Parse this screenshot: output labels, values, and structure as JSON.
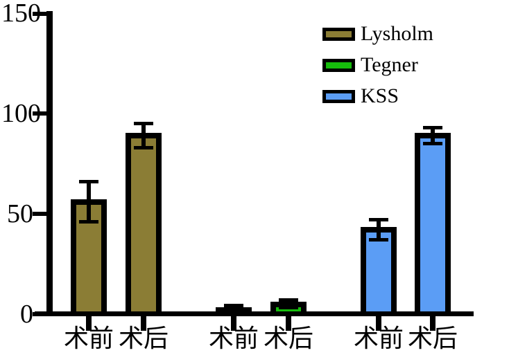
{
  "chart_data": {
    "type": "bar",
    "title": "",
    "xlabel": "",
    "ylabel": "",
    "ylim": [
      0,
      150
    ],
    "yticks": [
      0,
      50,
      100,
      150
    ],
    "grid": false,
    "legend_position": "top-right",
    "axis_color": "#000000",
    "group_x_labels": [
      "术前",
      "术后"
    ],
    "groups": [
      {
        "name": "Lysholm",
        "color": "#8B7D35",
        "bars": [
          {
            "label": "术前",
            "value": 56,
            "error": 10
          },
          {
            "label": "术后",
            "value": 89,
            "error": 6
          }
        ]
      },
      {
        "name": "Tegner",
        "color": "#16BC0C",
        "bars": [
          {
            "label": "术前",
            "value": 2,
            "error": 2
          },
          {
            "label": "术后",
            "value": 5,
            "error": 2
          }
        ]
      },
      {
        "name": "KSS",
        "color": "#5B9DF5",
        "bars": [
          {
            "label": "术前",
            "value": 42,
            "error": 5
          },
          {
            "label": "术后",
            "value": 89,
            "error": 4
          }
        ]
      }
    ]
  }
}
